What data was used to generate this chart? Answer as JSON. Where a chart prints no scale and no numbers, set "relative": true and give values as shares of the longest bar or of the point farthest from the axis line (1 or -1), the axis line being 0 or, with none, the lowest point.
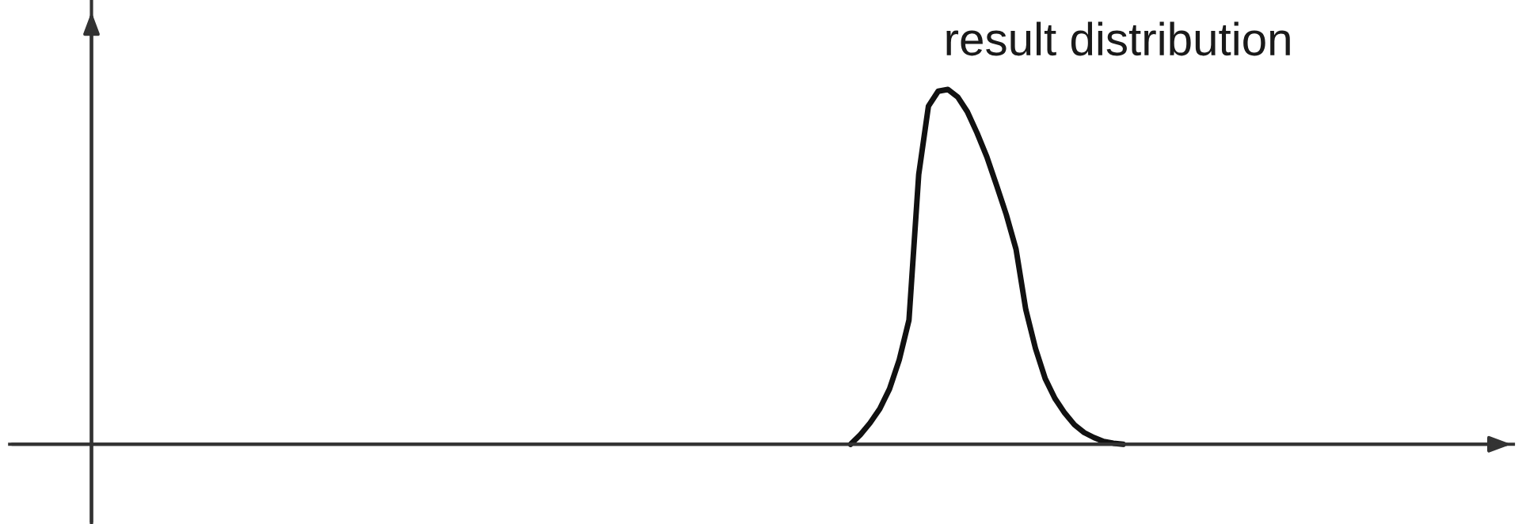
{
  "chart_data": {
    "type": "line",
    "relative": true,
    "marker": "none",
    "line_style": "solid",
    "categories": [
      null,
      null,
      null,
      null,
      null,
      null,
      null,
      null,
      null,
      null,
      null,
      null,
      null,
      null,
      null,
      null,
      null,
      null,
      null,
      null,
      null,
      null,
      null,
      null,
      null,
      null,
      null,
      null,
      null,
      null,
      null,
      null,
      null,
      null,
      null,
      null,
      null,
      null,
      null,
      null,
      null,
      null,
      null,
      null,
      null,
      null,
      null,
      null,
      null,
      null,
      null,
      null,
      null,
      null,
      null,
      null,
      null,
      null,
      null,
      null,
      null,
      null,
      null,
      null,
      null,
      null,
      null,
      null,
      null,
      null,
      null,
      null,
      null,
      null,
      null,
      null,
      null,
      null,
      null,
      null,
      null,
      null,
      null,
      null,
      null,
      null,
      null,
      null,
      null,
      null,
      null,
      null,
      null,
      null,
      null,
      null,
      null,
      null,
      null,
      null,
      null,
      null,
      null,
      null,
      null,
      null,
      null,
      null,
      null,
      null,
      null,
      null,
      null,
      null,
      null,
      null,
      null,
      null,
      null,
      null,
      null,
      null,
      null,
      null,
      null,
      null,
      null,
      null,
      null,
      null,
      null,
      null,
      null,
      null,
      null,
      null,
      null,
      null,
      null,
      null,
      null
    ],
    "series": [
      {
        "name": "result distribution",
        "color": "#111111",
        "values": [
          null,
          null,
          null,
          null,
          null,
          null,
          null,
          null,
          null,
          null,
          null,
          null,
          null,
          null,
          null,
          null,
          null,
          null,
          null,
          null,
          null,
          null,
          null,
          null,
          null,
          null,
          null,
          null,
          null,
          null,
          null,
          null,
          null,
          null,
          null,
          null,
          null,
          null,
          null,
          null,
          null,
          null,
          null,
          null,
          null,
          null,
          null,
          null,
          null,
          null,
          null,
          null,
          null,
          null,
          null,
          null,
          null,
          null,
          null,
          null,
          null,
          null,
          null,
          null,
          null,
          null,
          null,
          null,
          null,
          null,
          null,
          null,
          null,
          null,
          null,
          null,
          null,
          null,
          0,
          0.027,
          0.06,
          0.1,
          0.156,
          0.238,
          0.35,
          0.76,
          0.953,
          0.995,
          1.0,
          0.979,
          0.937,
          0.877,
          0.81,
          0.73,
          0.647,
          0.55,
          0.38,
          0.27,
          0.185,
          0.129,
          0.088,
          0.055,
          0.033,
          0.019,
          0.008,
          0.003,
          0,
          null,
          null,
          null,
          null,
          null,
          null,
          null,
          null,
          null,
          null,
          null,
          null,
          null,
          null,
          null,
          null,
          null,
          null,
          null,
          null,
          null,
          null,
          null,
          null,
          null,
          null,
          null,
          null,
          null,
          null,
          null,
          null,
          null,
          null
        ]
      }
    ]
  }
}
